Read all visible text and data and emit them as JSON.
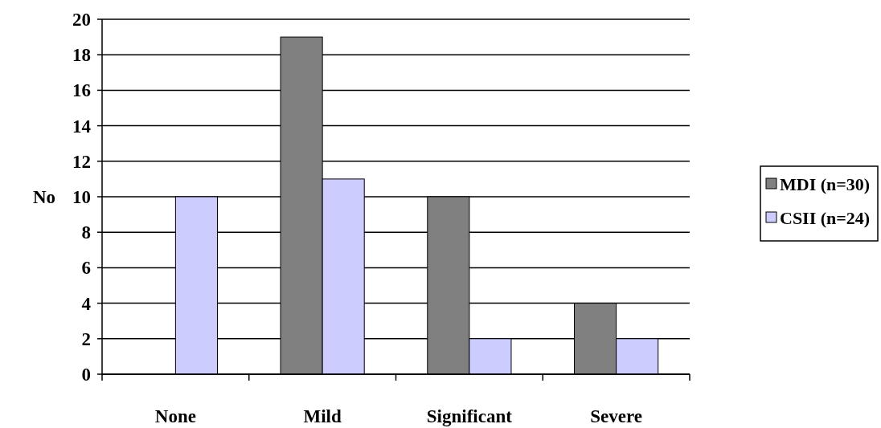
{
  "chart_data": {
    "type": "bar",
    "ylabel": "No",
    "categories": [
      "None",
      "Mild",
      "Significant",
      "Severe"
    ],
    "series": [
      {
        "name": "MDI (n=30)",
        "color": "#808080",
        "values": [
          0,
          19,
          10,
          4
        ]
      },
      {
        "name": "CSII (n=24)",
        "color": "#ccccff",
        "values": [
          10,
          11,
          2,
          2
        ]
      }
    ],
    "ylim": [
      0,
      20
    ],
    "yticks": [
      0,
      2,
      4,
      6,
      8,
      10,
      12,
      14,
      16,
      18,
      20
    ],
    "grid": "y",
    "legend": "right"
  }
}
